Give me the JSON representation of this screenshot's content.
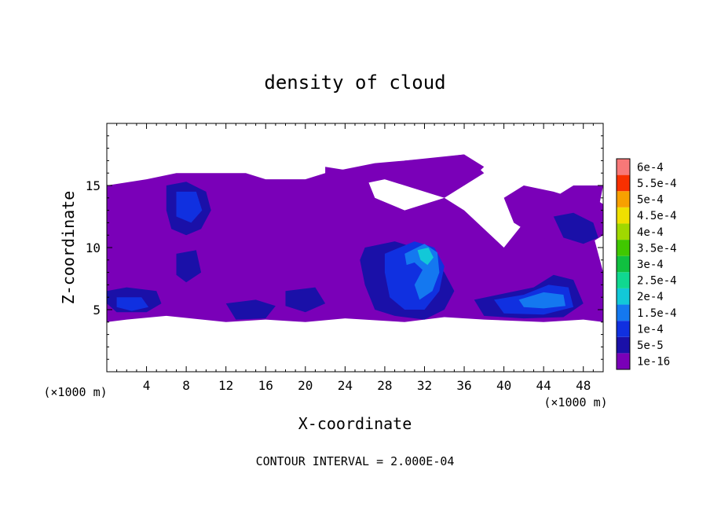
{
  "chart_data": {
    "type": "heatmap",
    "title": "density of cloud",
    "xlabel": "X-coordinate",
    "ylabel": "Z-coordinate",
    "x_unit_left": "(×1000 m)",
    "x_unit_right": "(×1000 m)",
    "xlim": [
      0,
      50
    ],
    "ylim": [
      0,
      20
    ],
    "x_ticks": [
      4,
      8,
      12,
      16,
      20,
      24,
      28,
      32,
      36,
      40,
      44,
      48
    ],
    "y_ticks": [
      5,
      10,
      15
    ],
    "footer": "CONTOUR INTERVAL = 2.000E-04",
    "colorbar": {
      "labels": [
        "1e-16",
        "5e-5",
        "1e-4",
        "1.5e-4",
        "2e-4",
        "2.5e-4",
        "3e-4",
        "3.5e-4",
        "4e-4",
        "4.5e-4",
        "5e-4",
        "5.5e-4",
        "6e-4"
      ],
      "colors": [
        "#7a00b8",
        "#1a10a8",
        "#1030e0",
        "#1478f0",
        "#12c8d8",
        "#10d890",
        "#10c040",
        "#40c800",
        "#a0d800",
        "#f0e000",
        "#f8a000",
        "#f83000",
        "#f87878"
      ]
    },
    "regions": [
      {
        "level": 0,
        "poly": [
          [
            0,
            4
          ],
          [
            2,
            4.2
          ],
          [
            6,
            4.5
          ],
          [
            12,
            4
          ],
          [
            16,
            4.2
          ],
          [
            20,
            4
          ],
          [
            24,
            4.3
          ],
          [
            30,
            4
          ],
          [
            34,
            4.4
          ],
          [
            38,
            4.2
          ],
          [
            44,
            4
          ],
          [
            48,
            4.2
          ],
          [
            50,
            4
          ],
          [
            50,
            8
          ],
          [
            49,
            11
          ],
          [
            50,
            15
          ],
          [
            47,
            15
          ],
          [
            45,
            14
          ],
          [
            42,
            12
          ],
          [
            40,
            10
          ],
          [
            36,
            13
          ],
          [
            34,
            14
          ],
          [
            30,
            13
          ],
          [
            27,
            14
          ],
          [
            26,
            16
          ],
          [
            30,
            17
          ],
          [
            36,
            17.5
          ],
          [
            38,
            16
          ],
          [
            34,
            14
          ],
          [
            26,
            16
          ],
          [
            22,
            16.5
          ],
          [
            22,
            16
          ],
          [
            20,
            15.5
          ],
          [
            16,
            15.5
          ],
          [
            14,
            16
          ],
          [
            11,
            16
          ],
          [
            7,
            16
          ],
          [
            4,
            15.5
          ],
          [
            0,
            15
          ],
          [
            0,
            11
          ],
          [
            0,
            4
          ]
        ]
      },
      {
        "level": 0,
        "poly": [
          [
            22,
            16
          ],
          [
            27,
            16.8
          ],
          [
            33,
            17.2
          ],
          [
            36,
            17.5
          ],
          [
            38,
            16.5
          ],
          [
            36,
            15
          ],
          [
            32,
            15
          ],
          [
            28,
            15.5
          ],
          [
            25,
            15
          ],
          [
            22,
            15.5
          ]
        ]
      },
      {
        "level": 0,
        "poly": [
          [
            40,
            14
          ],
          [
            42,
            15
          ],
          [
            45,
            14.5
          ],
          [
            47,
            14
          ],
          [
            49,
            14
          ],
          [
            50,
            13.5
          ],
          [
            50,
            11
          ],
          [
            48,
            10
          ],
          [
            45,
            10.5
          ],
          [
            43,
            11
          ],
          [
            41,
            12
          ]
        ]
      },
      {
        "level": 1,
        "poly": [
          [
            6,
            15
          ],
          [
            8,
            15.3
          ],
          [
            10,
            14.5
          ],
          [
            10.5,
            13
          ],
          [
            9.5,
            11.5
          ],
          [
            8,
            11
          ],
          [
            6.5,
            11.5
          ],
          [
            6,
            13
          ]
        ]
      },
      {
        "level": 1,
        "poly": [
          [
            0,
            6.5
          ],
          [
            2,
            6.8
          ],
          [
            5,
            6.5
          ],
          [
            5.5,
            5.5
          ],
          [
            4,
            4.8
          ],
          [
            1,
            4.8
          ],
          [
            0,
            5.5
          ]
        ]
      },
      {
        "level": 1,
        "poly": [
          [
            12,
            5.5
          ],
          [
            15,
            5.8
          ],
          [
            17,
            5.3
          ],
          [
            16,
            4.3
          ],
          [
            13,
            4.2
          ]
        ]
      },
      {
        "level": 1,
        "poly": [
          [
            7,
            9.5
          ],
          [
            9,
            9.8
          ],
          [
            9.5,
            8
          ],
          [
            8,
            7.2
          ],
          [
            7,
            7.8
          ]
        ]
      },
      {
        "level": 1,
        "poly": [
          [
            26,
            10
          ],
          [
            29,
            10.5
          ],
          [
            31,
            10
          ],
          [
            33,
            9
          ],
          [
            34,
            8
          ],
          [
            35,
            6.5
          ],
          [
            34,
            5
          ],
          [
            32,
            4.2
          ],
          [
            29,
            4.5
          ],
          [
            27,
            5
          ],
          [
            26,
            7
          ],
          [
            25.5,
            9
          ]
        ]
      },
      {
        "level": 1,
        "poly": [
          [
            37,
            5.8
          ],
          [
            40,
            6.3
          ],
          [
            43,
            6.8
          ],
          [
            45,
            7.8
          ],
          [
            47,
            7.4
          ],
          [
            48,
            5.5
          ],
          [
            46,
            4.4
          ],
          [
            42,
            4.3
          ],
          [
            38,
            4.5
          ]
        ]
      },
      {
        "level": 1,
        "poly": [
          [
            45,
            12.5
          ],
          [
            47,
            12.8
          ],
          [
            49,
            12
          ],
          [
            49.5,
            10.8
          ],
          [
            48,
            10.3
          ],
          [
            46,
            10.8
          ]
        ]
      },
      {
        "level": 1,
        "poly": [
          [
            18,
            6.5
          ],
          [
            21,
            6.8
          ],
          [
            22,
            5.5
          ],
          [
            20,
            4.8
          ],
          [
            18,
            5.3
          ]
        ]
      },
      {
        "level": 2,
        "poly": [
          [
            7,
            14.5
          ],
          [
            9,
            14.5
          ],
          [
            9.6,
            13
          ],
          [
            8.5,
            12
          ],
          [
            7,
            12.5
          ]
        ]
      },
      {
        "level": 2,
        "poly": [
          [
            1,
            6
          ],
          [
            3.5,
            6
          ],
          [
            4.2,
            5.2
          ],
          [
            2.5,
            4.9
          ],
          [
            1,
            5.2
          ]
        ]
      },
      {
        "level": 2,
        "poly": [
          [
            28,
            9.5
          ],
          [
            31,
            10.5
          ],
          [
            33,
            10
          ],
          [
            34,
            8.5
          ],
          [
            33.5,
            6.5
          ],
          [
            32,
            5
          ],
          [
            30,
            5
          ],
          [
            28.5,
            6
          ],
          [
            28,
            8
          ]
        ]
      },
      {
        "level": 2,
        "poly": [
          [
            39,
            5.8
          ],
          [
            42,
            6.2
          ],
          [
            44.5,
            7
          ],
          [
            46.5,
            6.8
          ],
          [
            47,
            5.2
          ],
          [
            44,
            4.6
          ],
          [
            40,
            4.7
          ]
        ]
      },
      {
        "level": 3,
        "poly": [
          [
            30,
            9.5
          ],
          [
            32,
            10.3
          ],
          [
            33.3,
            9.6
          ],
          [
            33.5,
            8
          ],
          [
            32.8,
            6.5
          ],
          [
            31.5,
            5.8
          ],
          [
            31,
            7
          ],
          [
            31.8,
            8.2
          ],
          [
            31,
            8.8
          ],
          [
            30.2,
            8.6
          ]
        ]
      },
      {
        "level": 3,
        "poly": [
          [
            41.5,
            5.8
          ],
          [
            44,
            6.4
          ],
          [
            46,
            6.2
          ],
          [
            46.2,
            5.3
          ],
          [
            44,
            5.1
          ],
          [
            42,
            5.2
          ]
        ]
      },
      {
        "level": 4,
        "poly": [
          [
            31.3,
            9.8
          ],
          [
            32.4,
            10
          ],
          [
            32.9,
            9.2
          ],
          [
            32.3,
            8.6
          ],
          [
            31.6,
            9
          ]
        ]
      }
    ]
  }
}
